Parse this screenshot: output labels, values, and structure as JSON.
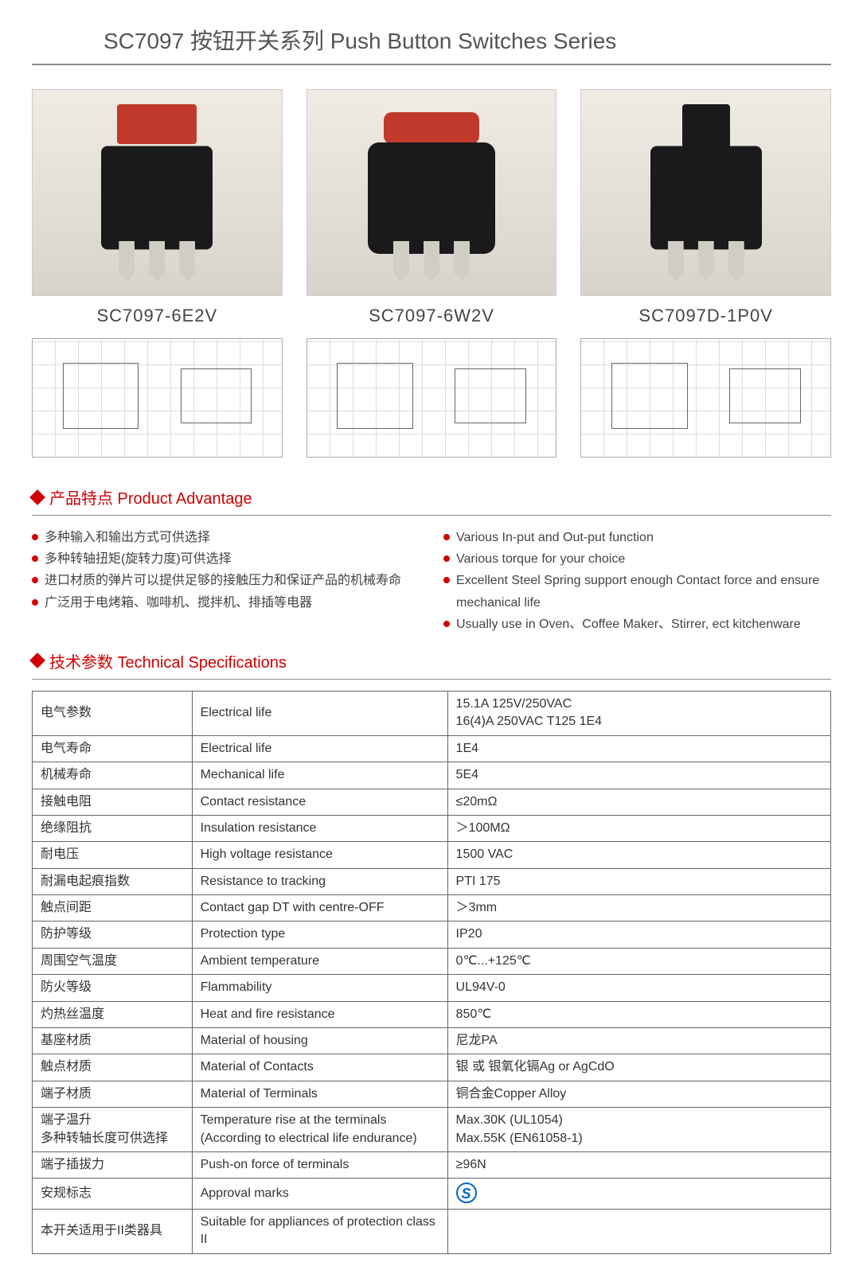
{
  "page_title": "SC7097 按钮开关系列 Push Button Switches Series",
  "colors": {
    "accent_red": "#d00000",
    "text": "#333333",
    "rule": "#888888",
    "switch_body": "#1a1a1a",
    "switch_red": "#c0392b",
    "pin": "#d0cdc5",
    "photo_bg_top": "#f0ece4",
    "photo_bg_bottom": "#d8d4cc",
    "approval_blue": "#0066cc"
  },
  "products": [
    {
      "label": "SC7097-6E2V",
      "top_style": "red"
    },
    {
      "label": "SC7097-6W2V",
      "top_style": "red"
    },
    {
      "label": "SC7097D-1P0V",
      "top_style": "black"
    }
  ],
  "section_advantage_title": "产品特点 Product Advantage",
  "section_specs_title": "技术参数 Technical Specifications",
  "advantages_cn": [
    "多种输入和输出方式可供选择",
    "多种转轴扭矩(旋转力度)可供选择",
    "进口材质的弹片可以提供足够的接触压力和保证产品的机械寿命",
    "广泛用于电烤箱、咖啡机、搅拌机、排插等电器"
  ],
  "advantages_en": [
    "Various In-put and Out-put function",
    "Various torque for your choice",
    "Excellent Steel Spring support enough Contact  force and ensure  mechanical life",
    "Usually use in Oven、Coffee Maker、Stirrer, ect kitchenware"
  ],
  "spec_rows": [
    {
      "cn": "电气参数",
      "en": "Electrical life",
      "val": "15.1A 125V/250VAC\n16(4)A  250VAC  T125 1E4"
    },
    {
      "cn": "电气寿命",
      "en": "Electrical life",
      "val": "1E4"
    },
    {
      "cn": "机械寿命",
      "en": "Mechanical life",
      "val": "5E4"
    },
    {
      "cn": "接触电阻",
      "en": "Contact resistance",
      "val": "≤20mΩ"
    },
    {
      "cn": "绝缘阻抗",
      "en": "Insulation resistance",
      "val": "＞100MΩ"
    },
    {
      "cn": "耐电压",
      "en": "High voltage resistance",
      "val": "1500 VAC"
    },
    {
      "cn": "耐漏电起痕指数",
      "en": "Resistance to tracking",
      "val": "PTI 175"
    },
    {
      "cn": "触点间距",
      "en": "Contact gap DT with centre-OFF",
      "val": "＞3mm"
    },
    {
      "cn": "防护等级",
      "en": "Protection type",
      "val": "IP20"
    },
    {
      "cn": "周围空气温度",
      "en": "Ambient temperature",
      "val": "0℃...+125℃"
    },
    {
      "cn": "防火等级",
      "en": "Flammability",
      "val": "UL94V-0"
    },
    {
      "cn": "灼热丝温度",
      "en": "Heat and fire resistance",
      "val": "850℃"
    },
    {
      "cn": "基座材质",
      "en": "Material of housing",
      "val": "尼龙PA"
    },
    {
      "cn": "触点材质",
      "en": "Material of Contacts",
      "val": "银 或 银氧化镉Ag or AgCdO"
    },
    {
      "cn": "端子材质",
      "en": "Material of Terminals",
      "val": "铜合金Copper Alloy"
    },
    {
      "cn": "端子温升\n多种转轴长度可供选择",
      "en": "Temperature rise at the terminals\n(According to electrical life endurance)",
      "val": "Max.30K (UL1054)\nMax.55K (EN61058-1)"
    },
    {
      "cn": "端子插拔力",
      "en": "Push-on force of terminals",
      "val": "≥96N"
    },
    {
      "cn": "安规标志",
      "en": "Approval marks",
      "val": "__APPROVAL_MARK__"
    },
    {
      "cn": "本开关适用于II类器具",
      "en": "Suitable for appliances of protection class  II",
      "val": ""
    }
  ],
  "approval_mark_glyph": "S"
}
